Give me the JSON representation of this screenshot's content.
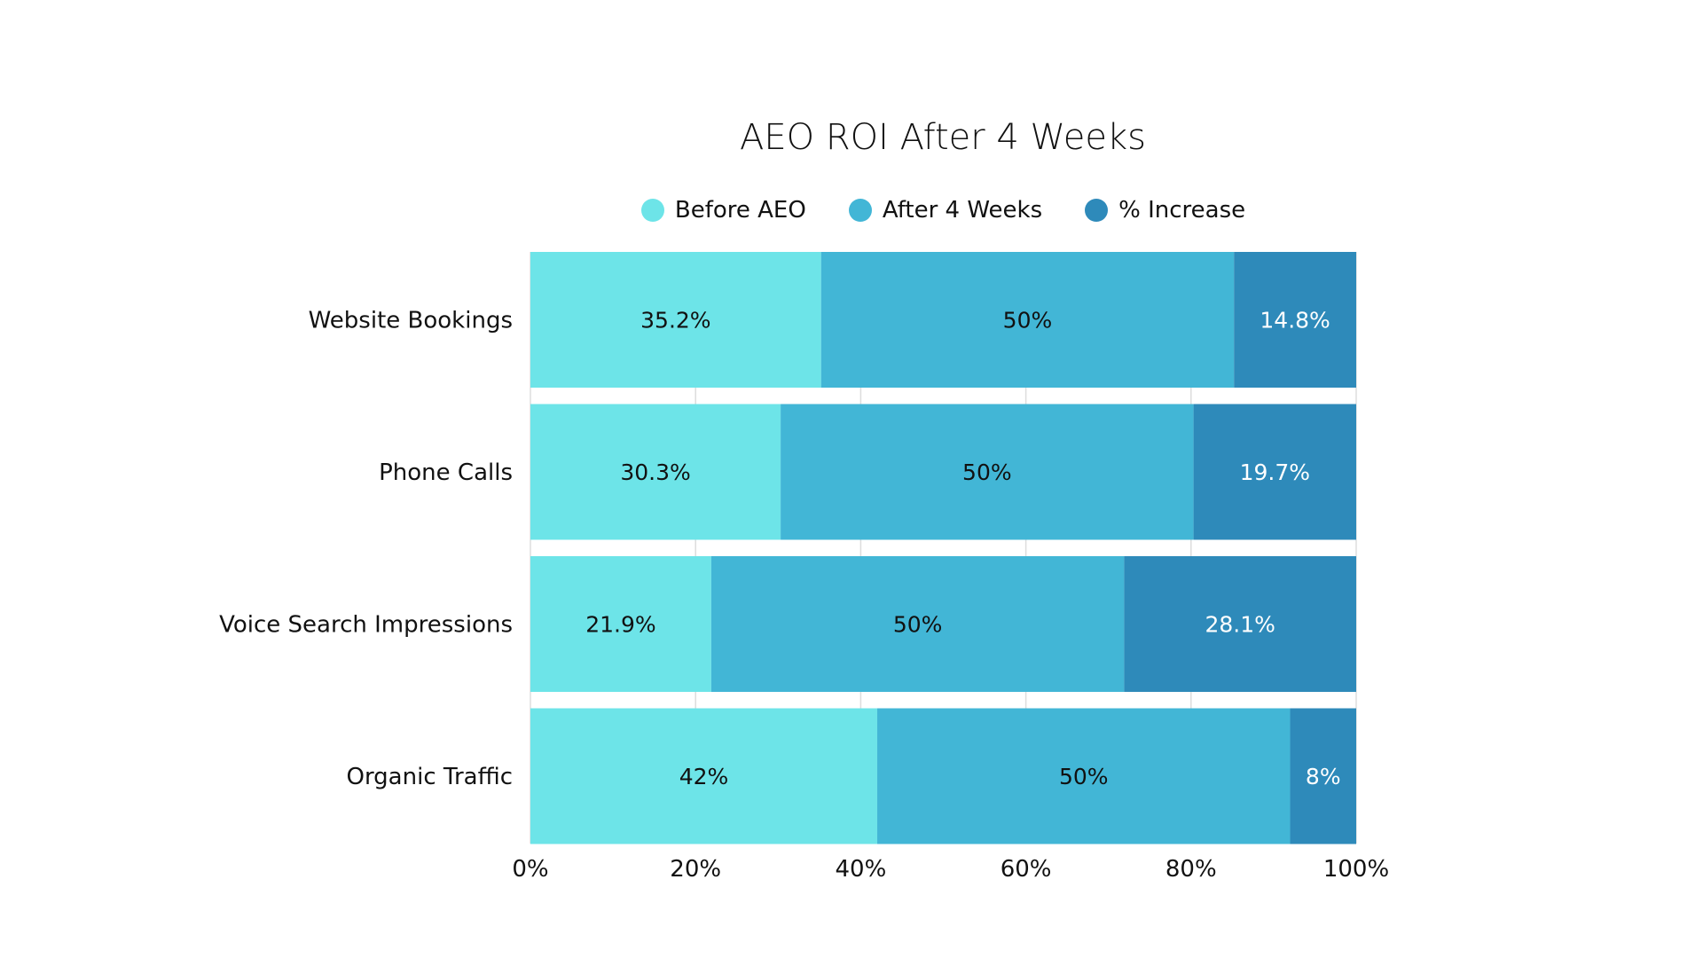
{
  "chart_data": {
    "type": "bar",
    "orientation": "horizontal",
    "stacked": true,
    "title": "AEO ROI After 4 Weeks",
    "categories": [
      "Website Bookings",
      "Phone Calls",
      "Voice Search Impressions",
      "Organic Traffic"
    ],
    "series": [
      {
        "name": "Before AEO",
        "values": [
          35.2,
          30.3,
          21.9,
          42
        ],
        "labels": [
          "35.2%",
          "30.3%",
          "21.9%",
          "42%"
        ],
        "color": "#6de4e8",
        "label_color": "#111111"
      },
      {
        "name": "After 4 Weeks",
        "values": [
          50,
          50,
          50,
          50
        ],
        "labels": [
          "50%",
          "50%",
          "50%",
          "50%"
        ],
        "color": "#42b6d6",
        "label_color": "#111111"
      },
      {
        "name": "% Increase",
        "values": [
          14.8,
          19.7,
          28.1,
          8
        ],
        "labels": [
          "14.8%",
          "19.7%",
          "28.1%",
          "8%"
        ],
        "color": "#2e8aba",
        "label_color": "#ffffff"
      }
    ],
    "xlim": [
      0,
      100
    ],
    "xticks": [
      "0%",
      "20%",
      "40%",
      "60%",
      "80%",
      "100%"
    ],
    "xlabel": "",
    "ylabel": "",
    "grid": true,
    "legend_position": "top"
  }
}
